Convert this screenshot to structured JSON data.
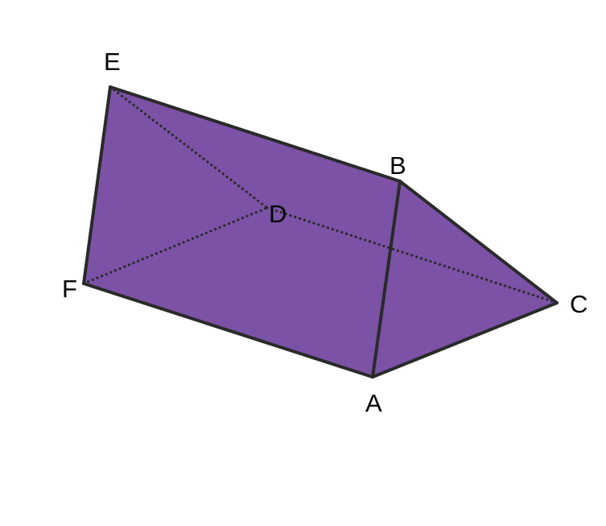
{
  "prism": {
    "fill_color": "#7b52a6",
    "edge_color": "#2a2a2a",
    "hidden_edge_color": "#2a2a2a",
    "vertices": {
      "A": "A",
      "B": "B",
      "C": "C",
      "D": "D",
      "E": "E",
      "F": "F"
    }
  }
}
